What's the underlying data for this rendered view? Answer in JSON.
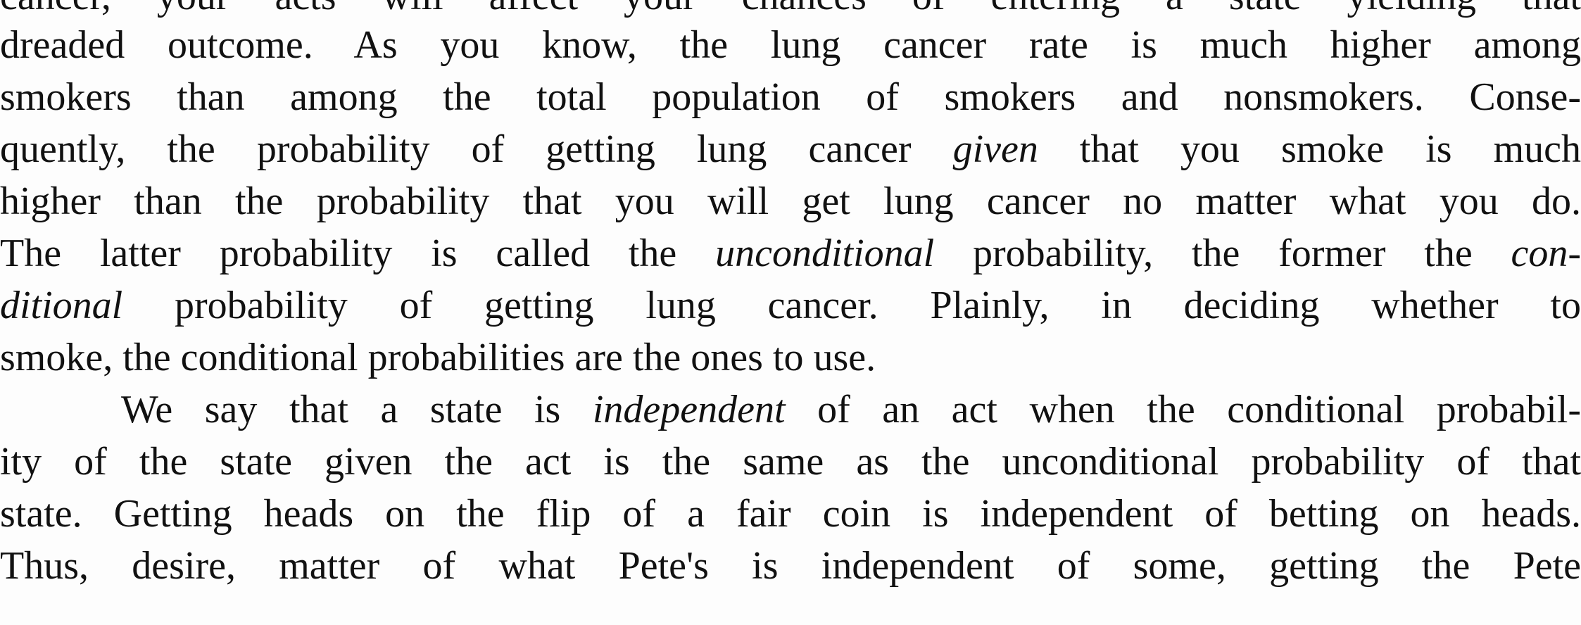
{
  "document": {
    "lines": [
      {
        "segments": [
          {
            "text": "cancer, your acts will affect your chances of entering a state yielding that",
            "italic": false
          }
        ]
      },
      {
        "segments": [
          {
            "text": "dreaded outcome. As you know, the lung cancer rate is much higher among",
            "italic": false
          }
        ]
      },
      {
        "segments": [
          {
            "text": "smokers than among the total population of smokers and nonsmokers. Conse-",
            "italic": false
          }
        ]
      },
      {
        "segments": [
          {
            "text": "quently, the probability of getting lung cancer ",
            "italic": false
          },
          {
            "text": "given",
            "italic": true
          },
          {
            "text": " that you smoke is much",
            "italic": false
          }
        ]
      },
      {
        "segments": [
          {
            "text": "higher than the probability that you will get lung cancer no matter what you do.",
            "italic": false
          }
        ]
      },
      {
        "segments": [
          {
            "text": "The latter probability is called the ",
            "italic": false
          },
          {
            "text": "unconditional",
            "italic": true
          },
          {
            "text": " probability, the former the ",
            "italic": false
          },
          {
            "text": "con-",
            "italic": true
          }
        ]
      },
      {
        "segments": [
          {
            "text": "ditional",
            "italic": true
          },
          {
            "text": " probability of getting lung cancer. Plainly, in deciding whether to",
            "italic": false
          }
        ]
      },
      {
        "segments": [
          {
            "text": "smoke, the conditional probabilities are the ones to use.",
            "italic": false
          }
        ]
      },
      {
        "segments": [
          {
            "text": "We say that a state is ",
            "italic": false
          },
          {
            "text": "independent",
            "italic": true
          },
          {
            "text": " of an act when the conditional probabil-",
            "italic": false
          }
        ]
      },
      {
        "segments": [
          {
            "text": "ity of the state given the act is the same as the unconditional probability of that",
            "italic": false
          }
        ]
      },
      {
        "segments": [
          {
            "text": "state. Getting heads on the flip of a fair coin is independent of betting on heads.",
            "italic": false
          }
        ]
      },
      {
        "segments": [
          {
            "text": "Thus, desire, matter of what Pete's is independent of some, getting the Pete",
            "italic": false
          }
        ]
      }
    ]
  }
}
